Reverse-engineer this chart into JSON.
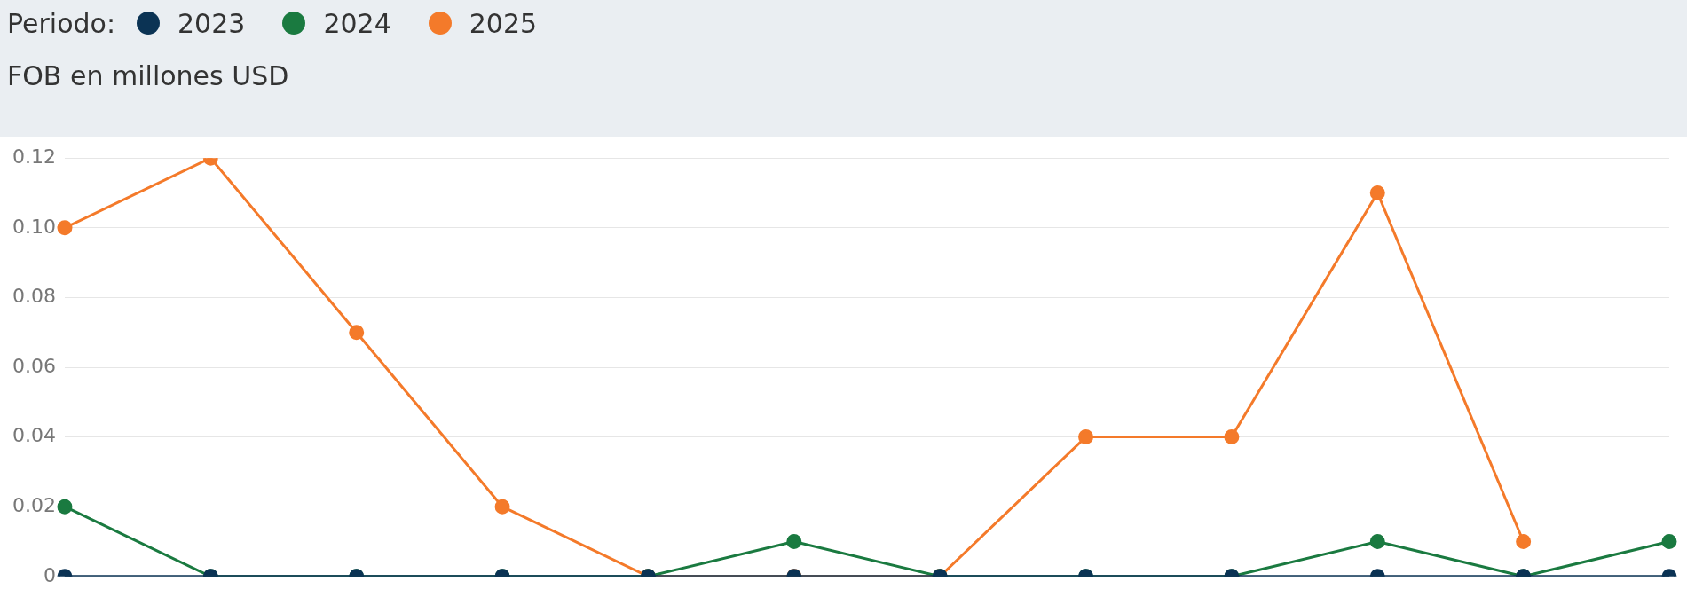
{
  "chart_data": {
    "type": "line",
    "legend_title": "Periodo:",
    "subtitle": "FOB en millones USD",
    "categories": [
      null,
      null,
      null,
      null,
      null,
      null,
      null,
      null,
      null,
      null,
      null,
      null
    ],
    "series": [
      {
        "name": "2023",
        "color": "#0b3354",
        "values": [
          0,
          0,
          0,
          0,
          0,
          0,
          0,
          0,
          0,
          0,
          0,
          0
        ]
      },
      {
        "name": "2024",
        "color": "#1a7a40",
        "values": [
          0.02,
          0,
          0,
          0,
          0,
          0.01,
          0,
          0,
          0,
          0.01,
          0,
          0.01
        ]
      },
      {
        "name": "2025",
        "color": "#f47a2a",
        "values": [
          0.1,
          0.12,
          0.07,
          0.02,
          0,
          0,
          0,
          0.04,
          0.04,
          0.11,
          0.01,
          null
        ]
      }
    ],
    "ylim": [
      0,
      0.12
    ],
    "yticks": [
      {
        "value": 0,
        "label": "0"
      },
      0.02,
      0.04,
      0.06,
      0.08,
      {
        "value": 0.1,
        "label": "0.10"
      },
      0.12
    ],
    "grid": "y",
    "legend": "top left",
    "marker": "circle",
    "line_style": "solid",
    "tick_labels": "y"
  }
}
